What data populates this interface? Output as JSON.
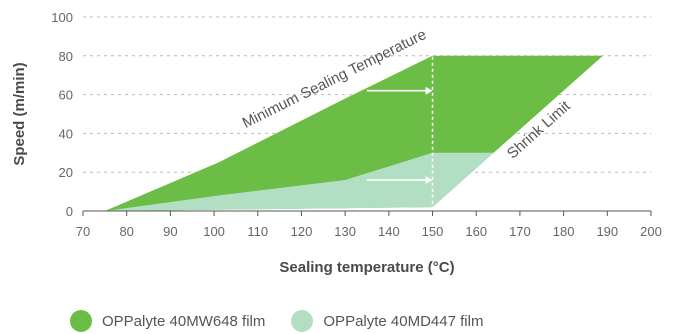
{
  "chart_data": {
    "type": "area",
    "title": "",
    "xlabel": "Sealing temperature (°C)",
    "ylabel": "Speed (m/min)",
    "xlim": [
      70,
      200
    ],
    "ylim": [
      0,
      100
    ],
    "x_ticks": [
      70,
      80,
      90,
      100,
      110,
      120,
      130,
      140,
      150,
      160,
      170,
      180,
      190,
      200
    ],
    "y_ticks": [
      0,
      20,
      40,
      60,
      80,
      100
    ],
    "grid": "horizontal-dashed",
    "legend_position": "bottom-left",
    "series": [
      {
        "name": "OPPalyte 40MW648 film",
        "color": "#6cbd45",
        "points": [
          [
            75,
            0
          ],
          [
            101,
            25
          ],
          [
            130,
            58
          ],
          [
            150,
            80
          ],
          [
            189,
            80
          ],
          [
            150,
            2
          ]
        ]
      },
      {
        "name": "OPPalyte 40MD447 film",
        "color": "#b2dfc4",
        "points": [
          [
            75,
            0
          ],
          [
            101,
            8
          ],
          [
            130,
            16
          ],
          [
            150,
            30
          ],
          [
            164,
            30
          ],
          [
            150,
            2
          ]
        ]
      }
    ],
    "annotations": [
      {
        "text": "Minimum Sealing Temperature",
        "x": 128,
        "y": 66
      },
      {
        "text": "Shrink Limit",
        "x": 175,
        "y": 40
      }
    ],
    "reference_line_x": 150,
    "arrows": [
      {
        "from": [
          135,
          62
        ],
        "to": [
          150,
          62
        ]
      },
      {
        "from": [
          135,
          16
        ],
        "to": [
          150,
          16
        ]
      }
    ]
  }
}
